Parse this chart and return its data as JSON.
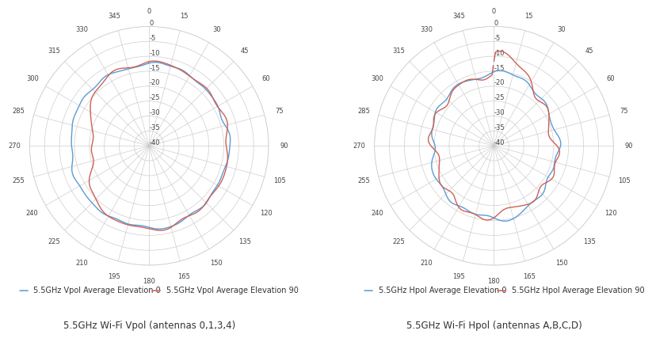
{
  "title_left": "5.5GHz Wi-Fi Vpol (antennas 0,1,3,4)",
  "title_right": "5.5GHz Wi-Fi Hpol (antennas A,B,C,D)",
  "legend_left_0": "5.5GHz Vpol Average Elevation 0",
  "legend_left_90": "5.5GHz Vpol Average Elevation 90",
  "legend_right_0": "5.5GHz Hpol Average Elevation 0",
  "legend_right_90": "5.5GHz Hpol Average Elevation 90",
  "color_blue": "#5B9BD5",
  "color_red": "#CD6155",
  "r_min": -40,
  "r_max": 0,
  "r_ticks_dB": [
    0,
    -5,
    -10,
    -15,
    -20,
    -25,
    -30,
    -35,
    -40
  ],
  "theta_ticks_deg": [
    0,
    15,
    30,
    45,
    60,
    75,
    90,
    105,
    120,
    135,
    150,
    165,
    180,
    195,
    210,
    225,
    240,
    255,
    270,
    285,
    300,
    315,
    330,
    345
  ],
  "background_color": "#FFFFFF",
  "grid_color": "#C8C8C8",
  "title_fontsize": 8.5,
  "tick_fontsize": 6,
  "legend_fontsize": 7
}
